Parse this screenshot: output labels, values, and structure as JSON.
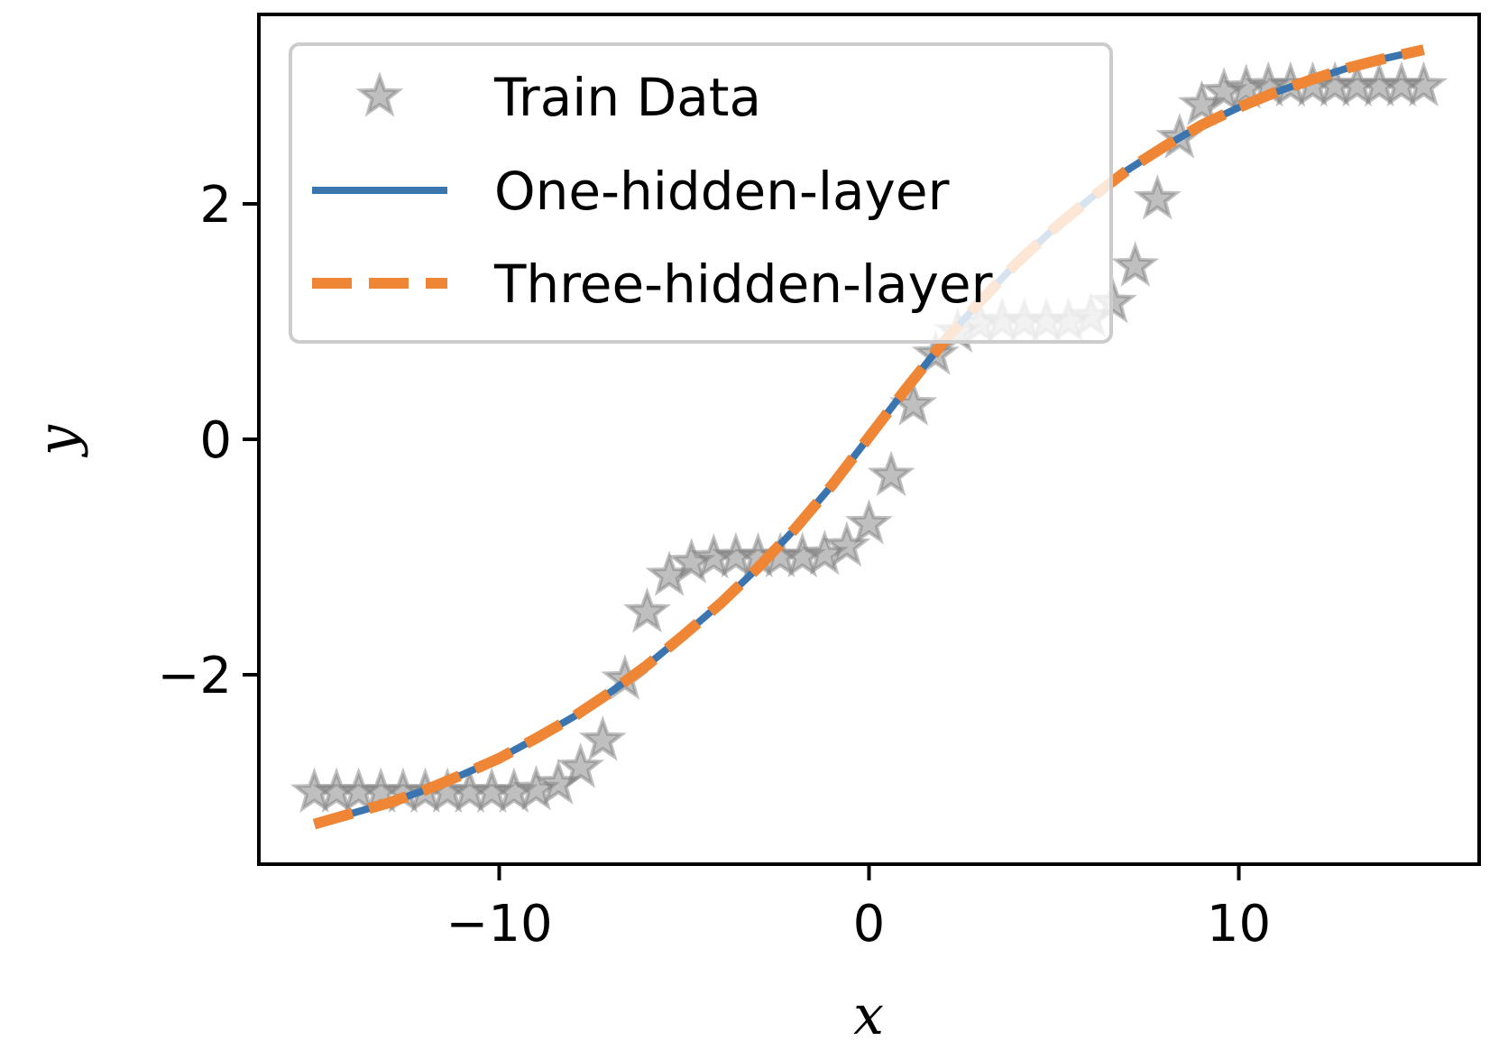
{
  "chart_data": {
    "type": "line",
    "title": "",
    "xlabel": "x",
    "ylabel": "y",
    "xlim": [
      -16.5,
      16.5
    ],
    "ylim": [
      -3.61,
      3.61
    ],
    "x_ticks": [
      -10,
      0,
      10
    ],
    "x_tick_labels": [
      "−10",
      "0",
      "10"
    ],
    "y_ticks": [
      -2,
      0,
      2
    ],
    "y_tick_labels": [
      "−2",
      "0",
      "2"
    ],
    "grid": false,
    "legend": {
      "placement": "upper-left"
    },
    "series": [
      {
        "name": "Train Data",
        "style": "markers",
        "marker": "star",
        "color": "#808080",
        "x": [
          -15,
          -14.4,
          -13.8,
          -13.2,
          -12.6,
          -12,
          -11.4,
          -10.8,
          -10.2,
          -9.6,
          -9,
          -8.4,
          -7.8,
          -7.2,
          -6.6,
          -6,
          -5.4,
          -4.8,
          -4.2,
          -3.6,
          -3,
          -2.4,
          -1.8,
          -1.2,
          -0.6,
          0,
          0.6,
          1.2,
          1.8,
          2.4,
          3,
          3.6,
          4.2,
          4.8,
          5.4,
          6,
          6.6,
          7.2,
          7.8,
          8.4,
          9,
          9.6,
          10.2,
          10.8,
          11.4,
          12,
          12.6,
          13.2,
          13.8,
          14.4,
          15
        ],
        "y": [
          -3,
          -3,
          -3,
          -3,
          -3,
          -3,
          -3,
          -3,
          -3,
          -3,
          -2.98,
          -2.93,
          -2.79,
          -2.56,
          -2.04,
          -1.47,
          -1.16,
          -1.05,
          -1.01,
          -1,
          -1,
          -1,
          -1,
          -0.98,
          -0.91,
          -0.72,
          -0.31,
          0.29,
          0.72,
          0.91,
          0.98,
          1,
          1,
          1,
          1,
          1.04,
          1.16,
          1.47,
          2.04,
          2.56,
          2.84,
          2.95,
          2.98,
          3,
          3,
          3,
          3,
          3,
          3,
          3,
          3
        ]
      },
      {
        "name": "One-hidden-layer",
        "style": "solid",
        "color": "#3b75af",
        "x": [
          -15,
          -14,
          -13,
          -12,
          -11,
          -10,
          -9,
          -8,
          -7,
          -6,
          -5,
          -4,
          -3,
          -2,
          -1,
          0,
          1,
          2,
          3,
          4,
          5,
          6,
          7,
          8,
          9,
          10,
          11,
          12,
          13,
          14,
          15
        ],
        "y": [
          -3.27,
          -3.18,
          -3.09,
          -2.98,
          -2.85,
          -2.71,
          -2.54,
          -2.36,
          -2.15,
          -1.92,
          -1.66,
          -1.39,
          -1.09,
          -0.76,
          -0.39,
          0.02,
          0.43,
          0.82,
          1.17,
          1.5,
          1.79,
          2.05,
          2.29,
          2.49,
          2.67,
          2.82,
          2.95,
          3.06,
          3.16,
          3.24,
          3.31
        ]
      },
      {
        "name": "Three-hidden-layer",
        "style": "dashed",
        "color": "#ef8636",
        "x": [
          -15,
          -14,
          -13,
          -12,
          -11,
          -10,
          -9,
          -8,
          -7,
          -6,
          -5,
          -4,
          -3,
          -2,
          -1,
          0,
          1,
          2,
          3,
          4,
          5,
          6,
          7,
          8,
          9,
          10,
          11,
          12,
          13,
          14,
          15
        ],
        "y": [
          -3.27,
          -3.18,
          -3.09,
          -2.98,
          -2.85,
          -2.71,
          -2.54,
          -2.36,
          -2.15,
          -1.92,
          -1.66,
          -1.39,
          -1.09,
          -0.76,
          -0.39,
          0.02,
          0.43,
          0.82,
          1.17,
          1.5,
          1.79,
          2.05,
          2.29,
          2.49,
          2.67,
          2.82,
          2.95,
          3.06,
          3.16,
          3.24,
          3.31
        ]
      }
    ]
  }
}
